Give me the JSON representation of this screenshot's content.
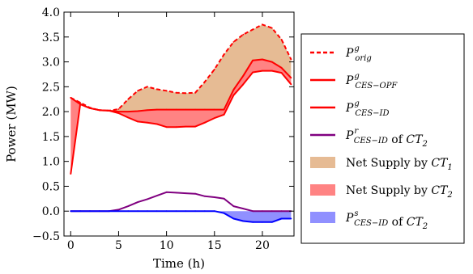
{
  "chart_data": {
    "type": "area",
    "title": "",
    "xlabel": "Time (h)",
    "ylabel": "Power (MW)",
    "xlim": [
      -0.7,
      23.3
    ],
    "ylim": [
      -0.5,
      4.0
    ],
    "xticks": [
      0,
      5,
      10,
      15,
      20
    ],
    "yticks": [
      -0.5,
      0.0,
      0.5,
      1.0,
      1.5,
      2.0,
      2.5,
      3.0,
      3.5,
      4.0
    ],
    "ytick_labels": [
      "−0.5",
      "0.0",
      "0.5",
      "1.0",
      "1.5",
      "2.0",
      "2.5",
      "3.0",
      "3.5",
      "4.0"
    ],
    "grid": false,
    "legend_position": "outside-right",
    "x": [
      0,
      1,
      2,
      3,
      4,
      5,
      6,
      7,
      8,
      9,
      10,
      11,
      12,
      13,
      14,
      15,
      16,
      17,
      18,
      19,
      20,
      21,
      22,
      23
    ],
    "series": [
      {
        "key": "p_orig",
        "style": "dashed",
        "color": "#ff0000",
        "values": [
          2.28,
          2.18,
          2.08,
          2.03,
          2.02,
          2.05,
          2.25,
          2.42,
          2.5,
          2.45,
          2.42,
          2.38,
          2.37,
          2.38,
          2.6,
          2.85,
          3.15,
          3.4,
          3.55,
          3.65,
          3.75,
          3.68,
          3.45,
          3.05
        ]
      },
      {
        "key": "p_ces_opf",
        "style": "solid",
        "color": "#ff0000",
        "values": [
          2.28,
          2.15,
          2.07,
          2.03,
          2.02,
          2.0,
          2.0,
          2.01,
          2.03,
          2.04,
          2.04,
          2.04,
          2.04,
          2.04,
          2.04,
          2.04,
          2.04,
          2.44,
          2.72,
          3.03,
          3.05,
          3.0,
          2.88,
          2.68
        ]
      },
      {
        "key": "p_ces_id",
        "style": "solid",
        "color": "#ff0000",
        "values": [
          0.75,
          2.15,
          2.07,
          2.03,
          2.02,
          1.97,
          1.88,
          1.8,
          1.78,
          1.75,
          1.69,
          1.69,
          1.7,
          1.7,
          1.78,
          1.87,
          1.94,
          2.33,
          2.55,
          2.79,
          2.82,
          2.82,
          2.78,
          2.55
        ]
      },
      {
        "key": "p_r_ces_id",
        "style": "solid",
        "color": "#800080",
        "values": [
          0.0,
          0.0,
          0.0,
          0.0,
          0.0,
          0.03,
          0.1,
          0.18,
          0.24,
          0.31,
          0.38,
          0.37,
          0.36,
          0.35,
          0.3,
          0.28,
          0.25,
          0.1,
          0.05,
          0.0,
          0.0,
          0.0,
          0.0,
          0.0
        ]
      },
      {
        "key": "p_s_ces_id",
        "style": "solid",
        "color": "#0000ff",
        "values": [
          0.0,
          0.0,
          0.0,
          0.0,
          0.0,
          0.0,
          0.0,
          0.0,
          0.0,
          0.0,
          0.0,
          0.0,
          0.0,
          0.0,
          0.0,
          0.0,
          -0.04,
          -0.15,
          -0.2,
          -0.22,
          -0.22,
          -0.22,
          -0.15,
          -0.15
        ]
      }
    ],
    "areas": [
      {
        "key": "net_supply_ct1",
        "between": [
          "p_orig",
          "p_ces_opf"
        ],
        "color": "#d9965b",
        "opacity": 0.65
      },
      {
        "key": "net_supply_ct2",
        "between": [
          "p_ces_opf",
          "p_ces_id"
        ],
        "color": "#ff4040",
        "opacity": 0.65
      },
      {
        "key": "p_s_area",
        "between": [
          "p_s_ces_id",
          "zero"
        ],
        "color": "#5555ff",
        "opacity": 0.65
      }
    ],
    "legend": [
      {
        "key": "p_orig",
        "kind": "line",
        "style": "dashed",
        "color": "#ff0000",
        "main": "P",
        "sup": "g",
        "sub": "orig",
        "suffix": "",
        "suffix_it": "",
        "suffix_sub": ""
      },
      {
        "key": "p_ces_opf",
        "kind": "line",
        "style": "solid",
        "color": "#ff0000",
        "main": "P",
        "sup": "g",
        "sub": "CES−OPF",
        "suffix": "",
        "suffix_it": "",
        "suffix_sub": ""
      },
      {
        "key": "p_ces_id",
        "kind": "line",
        "style": "solid",
        "color": "#ff0000",
        "main": "P",
        "sup": "g",
        "sub": "CES−ID",
        "suffix": "",
        "suffix_it": "",
        "suffix_sub": ""
      },
      {
        "key": "p_r_ces_id",
        "kind": "line",
        "style": "solid",
        "color": "#800080",
        "main": "P",
        "sup": "r",
        "sub": "CES−ID",
        "suffix": " of ",
        "suffix_it": "CT",
        "suffix_sub": "2"
      },
      {
        "key": "net_supply_ct1",
        "kind": "patch",
        "color": "#d9965b",
        "opacity": 0.65,
        "main": "",
        "sup": "",
        "sub": "",
        "suffix": "Net Supply by ",
        "suffix_it": "CT",
        "suffix_sub": "1"
      },
      {
        "key": "net_supply_ct2",
        "kind": "patch",
        "color": "#ff4040",
        "opacity": 0.65,
        "main": "",
        "sup": "",
        "sub": "",
        "suffix": "Net Supply by ",
        "suffix_it": "CT",
        "suffix_sub": "2"
      },
      {
        "key": "p_s_ces_id",
        "kind": "patch",
        "color": "#5555ff",
        "opacity": 0.65,
        "main": "P",
        "sup": "s",
        "sub": "CES−ID",
        "suffix": " of ",
        "suffix_it": "CT",
        "suffix_sub": "2"
      }
    ]
  }
}
